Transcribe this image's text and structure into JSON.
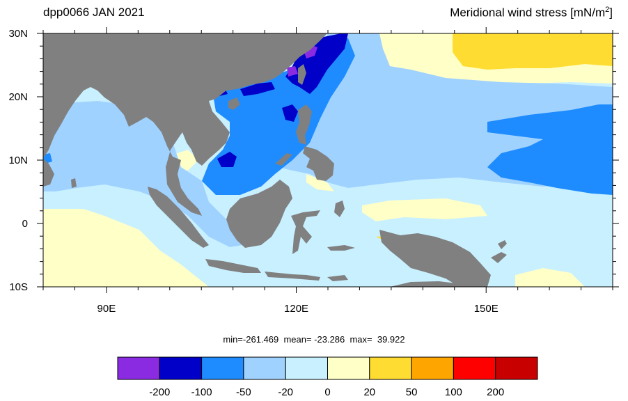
{
  "header": {
    "left_title": "dpp0066 JAN 2021",
    "right_title": "Meridional wind stress [mN/m",
    "right_title_sup": "2",
    "right_title_end": "]"
  },
  "map": {
    "lon_range": [
      80,
      170
    ],
    "lat_range": [
      -10,
      30
    ],
    "x_ticks": [
      {
        "lon": 90,
        "label": "90E"
      },
      {
        "lon": 120,
        "label": "120E"
      },
      {
        "lon": 150,
        "label": "150E"
      }
    ],
    "y_ticks": [
      {
        "lat": 30,
        "label": "30N"
      },
      {
        "lat": 20,
        "label": "20N"
      },
      {
        "lat": 10,
        "label": "10N"
      },
      {
        "lat": 0,
        "label": "0"
      },
      {
        "lat": -10,
        "label": "10S"
      }
    ],
    "land_color": "#808080",
    "ocean_default_color": "#c8f0ff"
  },
  "stats": {
    "text": "min=-261.469  mean= -23.286  max=  39.922"
  },
  "colorbar": {
    "colors": [
      "#8a2be2",
      "#0000c8",
      "#1e8cff",
      "#a0d2ff",
      "#c8f0ff",
      "#ffffc8",
      "#ffdc32",
      "#ffa500",
      "#ff0000",
      "#c80000"
    ],
    "labels": [
      "-200",
      "-100",
      "-50",
      "-20",
      "0",
      "20",
      "50",
      "100",
      "200"
    ]
  }
}
